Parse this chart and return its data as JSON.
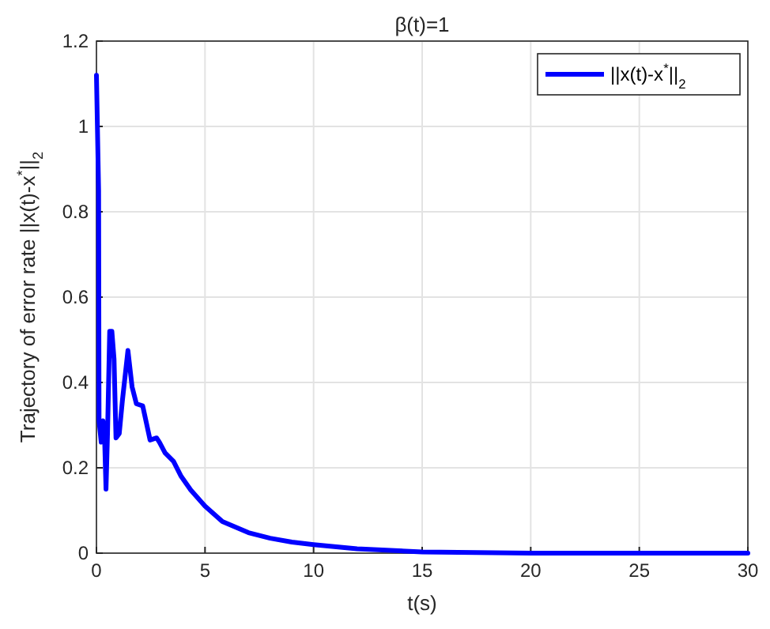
{
  "chart_data": {
    "type": "line",
    "title": "β(t)=1",
    "xlabel": "t(s)",
    "ylabel": "Trajectory of error rate ||x(t)-x$^{*}$||$_{2}$",
    "xlim": [
      0,
      30
    ],
    "xticks": [
      0,
      5,
      10,
      15,
      20,
      25,
      30
    ],
    "ylim": [
      0,
      1.2
    ],
    "yticks": [
      0,
      0.2,
      0.4,
      0.6,
      0.8,
      1,
      1.2
    ],
    "grid": true,
    "legend": "top right",
    "line_style": "solid",
    "marker": "none",
    "series": [
      {
        "name": "||x(t)-x$^{*}$||$_{2}$",
        "color": "#0000ff",
        "x": [
          0,
          0.1,
          0.12,
          0.22,
          0.3,
          0.37,
          0.44,
          0.51,
          0.61,
          0.71,
          0.81,
          0.9,
          1.05,
          1.2,
          1.45,
          1.64,
          1.84,
          2.13,
          2.28,
          2.47,
          2.77,
          2.9,
          3.16,
          3.55,
          3.9,
          4.34,
          5,
          5.8,
          7,
          8,
          9,
          10,
          12,
          15,
          20,
          25,
          30
        ],
        "values": [
          1.12,
          0.85,
          0.31,
          0.26,
          0.31,
          0.28,
          0.15,
          0.28,
          0.52,
          0.52,
          0.455,
          0.27,
          0.28,
          0.36,
          0.475,
          0.39,
          0.35,
          0.345,
          0.31,
          0.265,
          0.27,
          0.26,
          0.235,
          0.215,
          0.18,
          0.148,
          0.11,
          0.074,
          0.048,
          0.035,
          0.026,
          0.02,
          0.01,
          0.003,
          0,
          0,
          0
        ]
      }
    ]
  }
}
